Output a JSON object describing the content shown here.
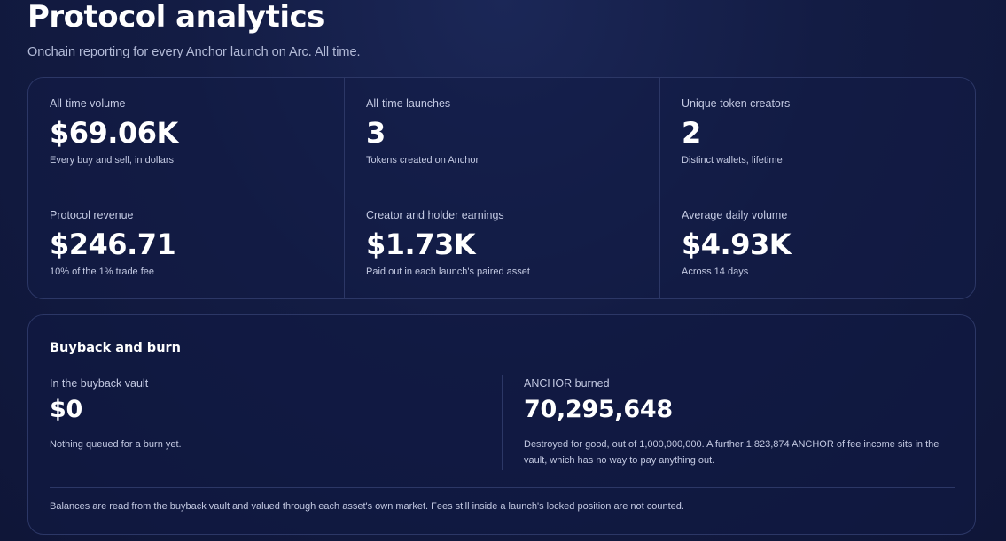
{
  "header": {
    "title": "Protocol analytics",
    "subtitle": "Onchain reporting for every Anchor launch on Arc. All time."
  },
  "stats": [
    {
      "label": "All-time volume",
      "value": "$69.06K",
      "caption": "Every buy and sell, in dollars"
    },
    {
      "label": "All-time launches",
      "value": "3",
      "caption": "Tokens created on Anchor"
    },
    {
      "label": "Unique token creators",
      "value": "2",
      "caption": "Distinct wallets, lifetime"
    },
    {
      "label": "Protocol revenue",
      "value": "$246.71",
      "caption": "10% of the 1% trade fee"
    },
    {
      "label": "Creator and holder earnings",
      "value": "$1.73K",
      "caption": "Paid out in each launch's paired asset"
    },
    {
      "label": "Average daily volume",
      "value": "$4.93K",
      "caption": "Across 14 days"
    }
  ],
  "buyback": {
    "title": "Buyback and burn",
    "vault": {
      "label": "In the buyback vault",
      "value": "$0",
      "caption": "Nothing queued for a burn yet."
    },
    "burned": {
      "label": "ANCHOR burned",
      "value": "70,295,648",
      "caption": "Destroyed for good, out of 1,000,000,000. A further 1,823,874 ANCHOR of fee income sits in the vault, which has no way to pay anything out."
    },
    "footnote": "Balances are read from the buyback vault and valued through each asset's own market. Fees still inside a launch's locked position are not counted."
  }
}
